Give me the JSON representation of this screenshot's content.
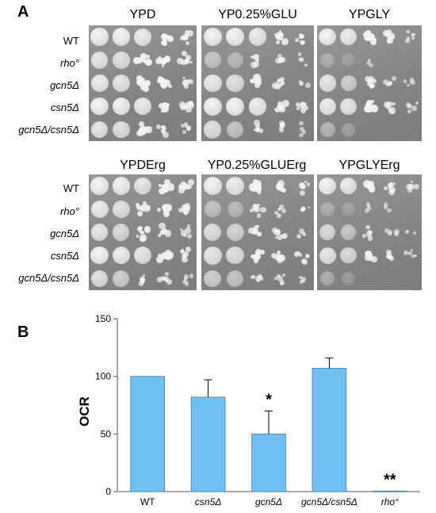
{
  "panel_a": {
    "letter": "A",
    "row_labels": [
      "WT",
      "rho°",
      "gcn5Δ",
      "csn5Δ",
      "gcn5Δ/csn5Δ"
    ],
    "top_titles": [
      "YPD",
      "YP0.25%GLU",
      "YPGLY"
    ],
    "bottom_titles": [
      "YPDErg",
      "YP0.25%GLUErg",
      "YPGLYErg"
    ]
  },
  "panel_b": {
    "letter": "B",
    "chart_data": {
      "type": "bar",
      "categories": [
        "WT",
        "csn5Δ",
        "gcn5Δ",
        "gcn5Δ/csn5Δ",
        "rho°"
      ],
      "values": [
        100,
        82,
        50,
        107,
        0.5
      ],
      "errors": [
        0,
        15,
        20,
        9,
        0
      ],
      "significance": [
        "",
        "",
        "*",
        "",
        "**"
      ],
      "ylabel": "OCR",
      "ylim": [
        0,
        150
      ],
      "yticks": [
        0,
        50,
        100,
        150
      ],
      "bar_color": "#6ec0f5",
      "grid": false
    }
  }
}
